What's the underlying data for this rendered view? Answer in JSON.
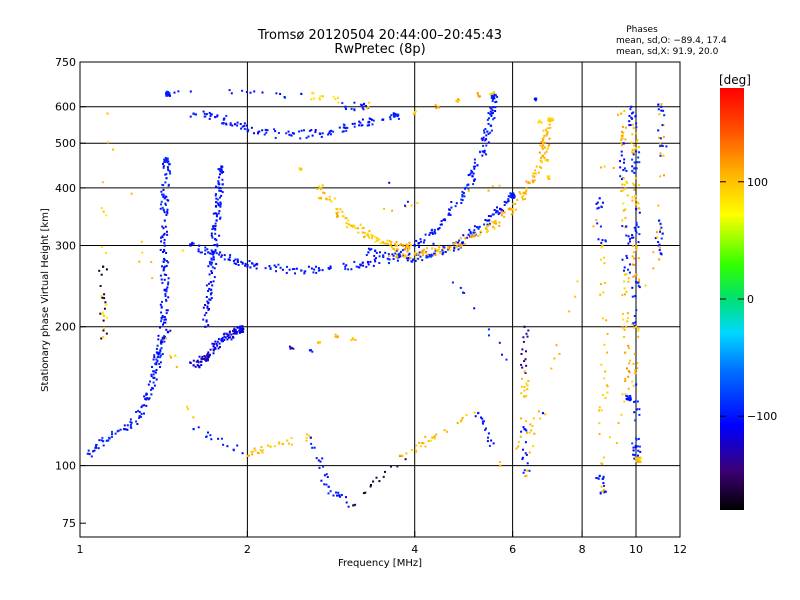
{
  "chart_data": {
    "type": "scatter",
    "title": "Tromsø 20120504 20:44:00–20:45:43",
    "subtitle": "RwPretec (8p)",
    "xlabel": "Frequency [MHz]",
    "ylabel": "Stationary phase Virtual Height [km]",
    "x_scale": "log",
    "y_scale": "log",
    "xlim": [
      1,
      12
    ],
    "ylim": [
      70,
      750
    ],
    "x_ticks": [
      1,
      2,
      4,
      6,
      8,
      10,
      12
    ],
    "x_gridlines": [
      2,
      4,
      6,
      8,
      10
    ],
    "y_ticks": [
      75,
      100,
      200,
      300,
      400,
      500,
      600,
      750
    ],
    "y_gridlines": [
      100,
      200,
      300,
      400,
      500,
      600
    ],
    "grid": true,
    "phases_box": {
      "heading": "Phases",
      "line1": "mean, sd,O: −89.4, 17.4",
      "line2": "mean, sd,X:  91.9, 20.0"
    },
    "colorbar": {
      "label": "[deg]",
      "range": [
        -180,
        180
      ],
      "ticks": [
        -100,
        0,
        100
      ],
      "tick_labels": [
        "−100",
        "0",
        "100"
      ],
      "colormap": "rainbow"
    },
    "traces": [
      {
        "points": [
          [
            1.04,
            106,
            -100
          ],
          [
            1.1,
            113,
            -90
          ],
          [
            1.2,
            120,
            -100
          ],
          [
            1.28,
            128,
            -95
          ],
          [
            1.32,
            140,
            -100
          ],
          [
            1.36,
            155,
            -100
          ],
          [
            1.38,
            172,
            -95
          ],
          [
            1.4,
            185,
            -100
          ],
          [
            1.42,
            210,
            -100
          ],
          [
            1.42,
            240,
            -100
          ],
          [
            1.42,
            270,
            -100
          ],
          [
            1.42,
            300,
            -100
          ],
          [
            1.42,
            340,
            -95
          ],
          [
            1.42,
            380,
            -100
          ],
          [
            1.43,
            420,
            -100
          ],
          [
            1.43,
            460,
            -95
          ]
        ]
      },
      {
        "points": [
          [
            1.36,
            160,
            -100
          ],
          [
            1.38,
            175,
            -110
          ],
          [
            1.4,
            185,
            -110
          ],
          [
            1.42,
            190,
            -110
          ],
          [
            1.44,
            195,
            -110
          ]
        ]
      },
      {
        "points": [
          [
            1.6,
            165,
            -120
          ],
          [
            1.65,
            168,
            -125
          ],
          [
            1.7,
            172,
            -120
          ],
          [
            1.75,
            180,
            -110
          ],
          [
            1.8,
            188,
            -110
          ],
          [
            1.85,
            192,
            -120
          ],
          [
            1.9,
            195,
            -110
          ],
          [
            1.95,
            197,
            -115
          ]
        ]
      },
      {
        "points": [
          [
            1.68,
            200,
            -110
          ],
          [
            1.7,
            225,
            -100
          ],
          [
            1.72,
            250,
            -105
          ],
          [
            1.74,
            280,
            -100
          ],
          [
            1.75,
            310,
            -100
          ],
          [
            1.76,
            340,
            -105
          ],
          [
            1.77,
            370,
            -100
          ],
          [
            1.78,
            400,
            -100
          ],
          [
            1.79,
            440,
            -100
          ]
        ]
      },
      {
        "points": [
          [
            1.58,
            300,
            -100
          ],
          [
            1.7,
            290,
            -100
          ],
          [
            1.85,
            280,
            -100
          ],
          [
            2.0,
            272,
            -105
          ],
          [
            2.2,
            268,
            -100
          ],
          [
            2.5,
            265,
            -100
          ],
          [
            2.8,
            268,
            -100
          ],
          [
            3.2,
            272,
            -100
          ],
          [
            3.6,
            280,
            -95
          ],
          [
            4.0,
            300,
            -100
          ],
          [
            4.3,
            320,
            -100
          ],
          [
            4.6,
            350,
            -100
          ],
          [
            4.9,
            390,
            -95
          ],
          [
            5.1,
            430,
            -100
          ],
          [
            5.3,
            480,
            -100
          ],
          [
            5.4,
            530,
            -95
          ],
          [
            5.5,
            580,
            -100
          ],
          [
            5.55,
            630,
            -95
          ]
        ]
      },
      {
        "points": [
          [
            2.7,
            400,
            100
          ],
          [
            2.9,
            360,
            95
          ],
          [
            3.1,
            330,
            100
          ],
          [
            3.3,
            315,
            90
          ],
          [
            3.5,
            305,
            100
          ],
          [
            3.7,
            300,
            110
          ],
          [
            3.9,
            298,
            100
          ]
        ]
      },
      {
        "points": [
          [
            2.5,
            440,
            100
          ],
          [
            2.7,
            380,
            100
          ],
          [
            2.9,
            350,
            110
          ],
          [
            3.1,
            330,
            100
          ]
        ]
      },
      {
        "points": [
          [
            3.3,
            290,
            -100
          ],
          [
            3.6,
            285,
            -100
          ],
          [
            3.9,
            282,
            -95
          ],
          [
            4.2,
            285,
            -90
          ],
          [
            4.5,
            290,
            -100
          ],
          [
            4.8,
            300,
            -100
          ],
          [
            5.1,
            320,
            -95
          ],
          [
            5.4,
            340,
            -100
          ],
          [
            5.7,
            360,
            -100
          ],
          [
            6.0,
            385,
            -100
          ]
        ]
      },
      {
        "points": [
          [
            3.6,
            285,
            100
          ],
          [
            4.0,
            287,
            110
          ],
          [
            4.4,
            293,
            100
          ],
          [
            4.8,
            302,
            110
          ],
          [
            5.2,
            315,
            100
          ],
          [
            5.6,
            335,
            110
          ],
          [
            6.0,
            360,
            100
          ],
          [
            6.3,
            390,
            110
          ],
          [
            6.6,
            430,
            100
          ],
          [
            6.8,
            470,
            110
          ],
          [
            6.9,
            520,
            100
          ],
          [
            7.0,
            560,
            95
          ]
        ]
      },
      {
        "points": [
          [
            1.6,
            580,
            -100
          ],
          [
            1.75,
            570,
            -100
          ],
          [
            1.9,
            550,
            -105
          ],
          [
            2.1,
            530,
            -100
          ],
          [
            2.4,
            520,
            -100
          ],
          [
            2.7,
            525,
            -95
          ],
          [
            3.0,
            540,
            -100
          ],
          [
            3.3,
            555,
            -100
          ],
          [
            3.7,
            575,
            -95
          ]
        ]
      },
      {
        "points": [
          [
            4.0,
            580,
            100
          ],
          [
            4.4,
            600,
            110
          ],
          [
            4.8,
            620,
            100
          ],
          [
            5.2,
            635,
            110
          ],
          [
            5.5,
            640,
            100
          ]
        ]
      },
      {
        "points": [
          [
            2.7,
            185,
            100
          ],
          [
            2.9,
            190,
            110
          ],
          [
            3.1,
            188,
            100
          ]
        ]
      },
      {
        "points": [
          [
            2.4,
            180,
            -120
          ],
          [
            2.6,
            178,
            -100
          ]
        ]
      },
      {
        "points": [
          [
            6.6,
            620,
            -100
          ],
          [
            6.7,
            560,
            90
          ],
          [
            6.8,
            500,
            110
          ],
          [
            6.9,
            460,
            100
          ],
          [
            6.95,
            420,
            95
          ]
        ]
      },
      {
        "points": [
          [
            9.8,
            600,
            -100
          ],
          [
            9.9,
            540,
            100
          ],
          [
            10.0,
            480,
            -90
          ],
          [
            10.0,
            420,
            100
          ],
          [
            10.0,
            360,
            -100
          ],
          [
            10.0,
            300,
            110
          ],
          [
            10.0,
            250,
            -100
          ],
          [
            10.0,
            200,
            100
          ],
          [
            10.0,
            150,
            -90
          ],
          [
            10.0,
            110,
            -100
          ],
          [
            10.1,
            103,
            100
          ]
        ]
      },
      {
        "points": [
          [
            9.4,
            580,
            110
          ],
          [
            9.5,
            500,
            -100
          ],
          [
            9.5,
            420,
            100
          ],
          [
            9.6,
            330,
            -100
          ],
          [
            9.6,
            260,
            100
          ],
          [
            9.6,
            200,
            110
          ],
          [
            9.7,
            140,
            -100
          ]
        ]
      },
      {
        "points": [
          [
            6.3,
            200,
            -140
          ],
          [
            6.3,
            160,
            100
          ],
          [
            6.3,
            120,
            -100
          ],
          [
            6.35,
            95,
            100
          ],
          [
            8.6,
            380,
            -100
          ],
          [
            8.7,
            300,
            100
          ],
          [
            8.8,
            160,
            100
          ],
          [
            8.6,
            95,
            -100
          ],
          [
            8.7,
            88,
            100
          ],
          [
            11.0,
            340,
            -100
          ],
          [
            11.0,
            280,
            110
          ],
          [
            11.1,
            600,
            -100
          ],
          [
            11.2,
            470,
            100
          ],
          [
            1.1,
            270,
            -170
          ],
          [
            1.1,
            190,
            90
          ],
          [
            1.12,
            580,
            100
          ],
          [
            1.6,
            120,
            -100
          ],
          [
            2.0,
            105,
            100
          ],
          [
            2.2,
            110,
            100
          ],
          [
            2.6,
            115,
            -100
          ],
          [
            2.8,
            90,
            -100
          ],
          [
            3.1,
            82,
            -160
          ],
          [
            3.8,
            105,
            100
          ],
          [
            4.3,
            115,
            100
          ],
          [
            5.2,
            130,
            -100
          ],
          [
            5.7,
            100,
            100
          ],
          [
            6.8,
            130,
            -100
          ],
          [
            3.0,
            600,
            -100
          ],
          [
            3.3,
            600,
            90
          ],
          [
            2.5,
            640,
            -100
          ],
          [
            1.44,
            640,
            -100
          ]
        ]
      }
    ]
  }
}
